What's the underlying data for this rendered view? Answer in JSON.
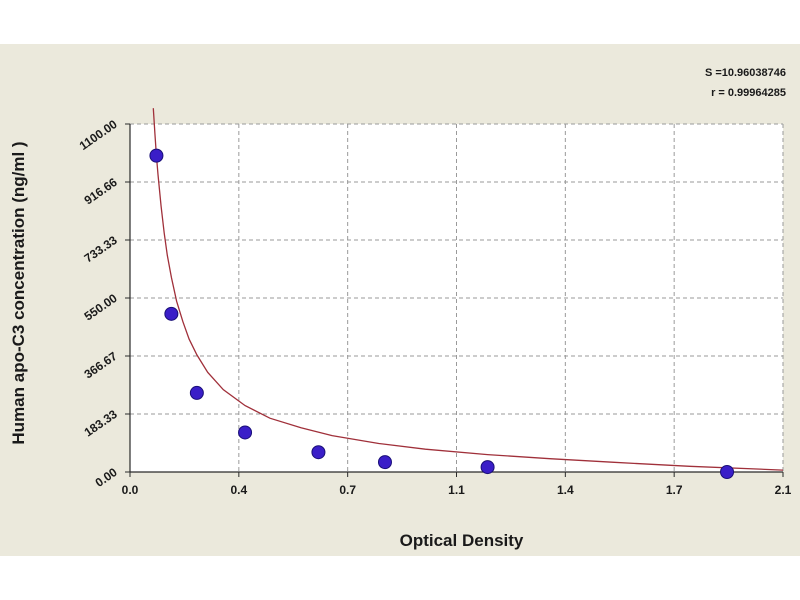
{
  "chart_data": {
    "type": "scatter",
    "title": "",
    "xlabel": "Optical Density",
    "ylabel": "Human apo-C3 concentration (ng/ml )",
    "xlim": [
      0.0,
      2.1
    ],
    "ylim": [
      0.0,
      1100.0
    ],
    "x_ticks": [
      "0.0",
      "0.4",
      "0.7",
      "1.1",
      "1.4",
      "1.7",
      "2.1"
    ],
    "x_tick_values": [
      0.0,
      0.35,
      0.7,
      1.05,
      1.4,
      1.75,
      2.1
    ],
    "y_ticks": [
      "0.00",
      "183.33",
      "366.67",
      "550.00",
      "733.33",
      "916.66",
      "1100.00"
    ],
    "y_tick_values": [
      0.0,
      183.33,
      366.67,
      550.0,
      733.33,
      916.66,
      1100.0
    ],
    "grid": true,
    "annotations": [
      "S =10.96038746",
      "r = 0.99964285"
    ],
    "series": [
      {
        "type": "scatter",
        "marker": "circle",
        "x": [
          0.085,
          0.133,
          0.215,
          0.37,
          0.606,
          0.82,
          1.15,
          1.92
        ],
        "y": [
          1000,
          500,
          250,
          125,
          62.5,
          31.25,
          15.6,
          0
        ]
      },
      {
        "type": "line",
        "x": [
          0.075,
          0.08,
          0.085,
          0.09,
          0.1,
          0.11,
          0.12,
          0.133,
          0.15,
          0.17,
          0.19,
          0.215,
          0.25,
          0.3,
          0.37,
          0.45,
          0.55,
          0.65,
          0.8,
          0.95,
          1.15,
          1.35,
          1.55,
          1.8,
          2.1
        ],
        "y": [
          1150,
          1070,
          1000,
          940,
          840,
          755,
          685,
          615,
          540,
          475,
          420,
          370,
          315,
          260,
          210,
          170,
          140,
          115,
          90,
          72,
          55,
          42,
          31,
          18,
          6
        ]
      }
    ],
    "colors": {
      "background": "#ebe9dc",
      "grid": "#9a9a9a",
      "axis": "#2a2a2a",
      "marker": "#3a1ec8",
      "marker_edge": "#1a0f78",
      "curve": "#a0303a"
    }
  }
}
